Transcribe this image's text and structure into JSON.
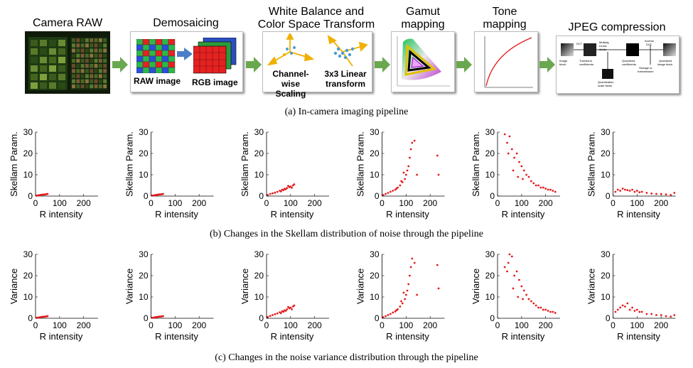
{
  "stages": [
    {
      "label": "Camera RAW"
    },
    {
      "label": "Demosaicing",
      "sub1": "RAW image",
      "sub2": "RGB image"
    },
    {
      "label": "White Balance and\nColor Space Transform",
      "sub1": "Channel-wise\nScaling",
      "sub2": "3x3 Linear\ntransform"
    },
    {
      "label": "Gamut\nmapping"
    },
    {
      "label": "Tone\nmapping"
    },
    {
      "label": "JPEG compression"
    }
  ],
  "captions": {
    "a": "(a)  In-camera imaging pipeline",
    "b": "(b)  Changes in the Skellam distribution of noise through the pipeline",
    "c": "(c)  Changes in the noise variance distribution through the pipeline"
  },
  "colors": {
    "points": "#e31a1c",
    "arrow": "#6aa84f"
  },
  "chart_data": [
    {
      "type": "scatter",
      "row": "b",
      "xlabel": "R intensity",
      "ylabel": "Skellam Param.",
      "xlim": [
        0,
        260
      ],
      "ylim": [
        0,
        30
      ],
      "xticks": [
        0,
        100,
        200
      ],
      "yticks": [
        0,
        10,
        20,
        30
      ],
      "points": [
        [
          5,
          0.2
        ],
        [
          10,
          0.3
        ],
        [
          15,
          0.4
        ],
        [
          20,
          0.5
        ],
        [
          25,
          0.6
        ],
        [
          30,
          0.7
        ],
        [
          35,
          0.7
        ],
        [
          40,
          0.8
        ],
        [
          45,
          0.9
        ],
        [
          50,
          1.0
        ]
      ]
    },
    {
      "type": "scatter",
      "row": "b",
      "xlabel": "R intensity",
      "ylabel": "Skellam Param.",
      "xlim": [
        0,
        260
      ],
      "ylim": [
        0,
        30
      ],
      "xticks": [
        0,
        100,
        200
      ],
      "yticks": [
        0,
        10,
        20,
        30
      ],
      "points": [
        [
          5,
          0.2
        ],
        [
          10,
          0.3
        ],
        [
          15,
          0.4
        ],
        [
          20,
          0.5
        ],
        [
          25,
          0.6
        ],
        [
          30,
          0.7
        ],
        [
          35,
          0.8
        ],
        [
          40,
          0.8
        ],
        [
          45,
          0.9
        ],
        [
          50,
          1.0
        ]
      ]
    },
    {
      "type": "scatter",
      "row": "b",
      "xlabel": "R intensity",
      "ylabel": "Skellam Param.",
      "xlim": [
        0,
        260
      ],
      "ylim": [
        0,
        30
      ],
      "xticks": [
        0,
        100,
        200
      ],
      "yticks": [
        0,
        10,
        20,
        30
      ],
      "points": [
        [
          5,
          0.5
        ],
        [
          15,
          1
        ],
        [
          25,
          1.3
        ],
        [
          35,
          1.6
        ],
        [
          45,
          2
        ],
        [
          55,
          2.5
        ],
        [
          65,
          3
        ],
        [
          75,
          3.4
        ],
        [
          85,
          3.8
        ],
        [
          95,
          4.2
        ],
        [
          100,
          4.5
        ],
        [
          110,
          5
        ],
        [
          115,
          5.5
        ],
        [
          60,
          2.2
        ],
        [
          80,
          3.2
        ],
        [
          90,
          4.8
        ],
        [
          105,
          3.9
        ],
        [
          70,
          2.8
        ]
      ]
    },
    {
      "type": "scatter",
      "row": "b",
      "xlabel": "R intensity",
      "ylabel": "Skellam Param.",
      "xlim": [
        0,
        260
      ],
      "ylim": [
        0,
        30
      ],
      "xticks": [
        0,
        100,
        200
      ],
      "yticks": [
        0,
        10,
        20,
        30
      ],
      "points": [
        [
          5,
          0.5
        ],
        [
          15,
          1
        ],
        [
          25,
          1.5
        ],
        [
          35,
          2
        ],
        [
          45,
          2.5
        ],
        [
          55,
          3
        ],
        [
          65,
          4
        ],
        [
          75,
          5
        ],
        [
          85,
          6.5
        ],
        [
          95,
          8
        ],
        [
          100,
          10
        ],
        [
          105,
          12
        ],
        [
          110,
          14
        ],
        [
          115,
          18
        ],
        [
          120,
          22
        ],
        [
          125,
          25
        ],
        [
          135,
          26
        ],
        [
          145,
          10
        ],
        [
          90,
          11
        ],
        [
          80,
          7
        ],
        [
          60,
          3.5
        ],
        [
          230,
          19
        ],
        [
          235,
          10
        ]
      ]
    },
    {
      "type": "scatter",
      "row": "b",
      "xlabel": "R intensity",
      "ylabel": "Skellam Param.",
      "xlim": [
        0,
        260
      ],
      "ylim": [
        0,
        30
      ],
      "xticks": [
        0,
        100,
        200
      ],
      "yticks": [
        0,
        10,
        20,
        30
      ],
      "points": [
        [
          30,
          29
        ],
        [
          40,
          25
        ],
        [
          50,
          28
        ],
        [
          60,
          22
        ],
        [
          70,
          18
        ],
        [
          80,
          20
        ],
        [
          90,
          16
        ],
        [
          100,
          14
        ],
        [
          110,
          12
        ],
        [
          120,
          10
        ],
        [
          130,
          9
        ],
        [
          140,
          7
        ],
        [
          150,
          6
        ],
        [
          160,
          5
        ],
        [
          170,
          5
        ],
        [
          180,
          4
        ],
        [
          190,
          4
        ],
        [
          200,
          3.5
        ],
        [
          210,
          3
        ],
        [
          220,
          3
        ],
        [
          230,
          2.5
        ],
        [
          240,
          2
        ],
        [
          45,
          20
        ],
        [
          65,
          12
        ],
        [
          85,
          9
        ],
        [
          105,
          8
        ]
      ]
    },
    {
      "type": "scatter",
      "row": "b",
      "xlabel": "R intensity",
      "ylabel": "Skellam Param.",
      "xlim": [
        0,
        260
      ],
      "ylim": [
        0,
        30
      ],
      "xticks": [
        0,
        100,
        200
      ],
      "yticks": [
        0,
        10,
        20,
        30
      ],
      "points": [
        [
          10,
          2
        ],
        [
          20,
          3
        ],
        [
          30,
          2.5
        ],
        [
          40,
          3.5
        ],
        [
          50,
          3
        ],
        [
          60,
          2.8
        ],
        [
          70,
          2.5
        ],
        [
          80,
          3
        ],
        [
          90,
          2
        ],
        [
          100,
          2.5
        ],
        [
          110,
          1.8
        ],
        [
          120,
          2
        ],
        [
          140,
          1.5
        ],
        [
          160,
          1.2
        ],
        [
          180,
          1
        ],
        [
          200,
          1
        ],
        [
          220,
          0.8
        ],
        [
          240,
          0.5
        ],
        [
          255,
          1.5
        ]
      ]
    },
    {
      "type": "scatter",
      "row": "c",
      "xlabel": "R intensity",
      "ylabel": "Variance",
      "xlim": [
        0,
        260
      ],
      "ylim": [
        0,
        30
      ],
      "xticks": [
        0,
        100,
        200
      ],
      "yticks": [
        0,
        10,
        20,
        30
      ],
      "points": [
        [
          5,
          0.2
        ],
        [
          10,
          0.3
        ],
        [
          15,
          0.4
        ],
        [
          20,
          0.5
        ],
        [
          25,
          0.6
        ],
        [
          30,
          0.7
        ],
        [
          35,
          0.7
        ],
        [
          40,
          0.8
        ],
        [
          45,
          0.9
        ],
        [
          50,
          1.0
        ]
      ]
    },
    {
      "type": "scatter",
      "row": "c",
      "xlabel": "R intensity",
      "ylabel": "Variance",
      "xlim": [
        0,
        260
      ],
      "ylim": [
        0,
        30
      ],
      "xticks": [
        0,
        100,
        200
      ],
      "yticks": [
        0,
        10,
        20,
        30
      ],
      "points": [
        [
          5,
          0.2
        ],
        [
          10,
          0.3
        ],
        [
          15,
          0.4
        ],
        [
          20,
          0.5
        ],
        [
          25,
          0.6
        ],
        [
          30,
          0.7
        ],
        [
          35,
          0.8
        ],
        [
          40,
          0.8
        ],
        [
          45,
          0.9
        ],
        [
          50,
          1.0
        ]
      ]
    },
    {
      "type": "scatter",
      "row": "c",
      "xlabel": "R intensity",
      "ylabel": "Variance",
      "xlim": [
        0,
        260
      ],
      "ylim": [
        0,
        30
      ],
      "xticks": [
        0,
        100,
        200
      ],
      "yticks": [
        0,
        10,
        20,
        30
      ],
      "points": [
        [
          5,
          0.6
        ],
        [
          15,
          1.1
        ],
        [
          25,
          1.5
        ],
        [
          35,
          1.9
        ],
        [
          45,
          2.3
        ],
        [
          55,
          2.8
        ],
        [
          65,
          3.3
        ],
        [
          75,
          3.7
        ],
        [
          85,
          4.2
        ],
        [
          95,
          4.7
        ],
        [
          100,
          5
        ],
        [
          110,
          5.5
        ],
        [
          115,
          6
        ],
        [
          60,
          2.4
        ],
        [
          80,
          3.5
        ],
        [
          90,
          5.3
        ],
        [
          105,
          4.2
        ],
        [
          70,
          3.1
        ]
      ]
    },
    {
      "type": "scatter",
      "row": "c",
      "xlabel": "R intensity",
      "ylabel": "Variance",
      "xlim": [
        0,
        260
      ],
      "ylim": [
        0,
        30
      ],
      "xticks": [
        0,
        100,
        200
      ],
      "yticks": [
        0,
        10,
        20,
        30
      ],
      "points": [
        [
          5,
          0.5
        ],
        [
          15,
          1
        ],
        [
          25,
          1.5
        ],
        [
          35,
          2
        ],
        [
          45,
          2.7
        ],
        [
          55,
          3.2
        ],
        [
          65,
          4.2
        ],
        [
          75,
          5.5
        ],
        [
          85,
          7
        ],
        [
          95,
          9
        ],
        [
          100,
          11
        ],
        [
          105,
          13
        ],
        [
          110,
          16
        ],
        [
          115,
          20
        ],
        [
          120,
          24
        ],
        [
          125,
          28
        ],
        [
          135,
          26
        ],
        [
          145,
          11
        ],
        [
          90,
          12
        ],
        [
          80,
          8
        ],
        [
          60,
          3.8
        ],
        [
          230,
          25
        ],
        [
          235,
          14
        ]
      ]
    },
    {
      "type": "scatter",
      "row": "c",
      "xlabel": "R intensity",
      "ylabel": "Variance",
      "xlim": [
        0,
        260
      ],
      "ylim": [
        0,
        30
      ],
      "xticks": [
        0,
        100,
        200
      ],
      "yticks": [
        0,
        10,
        20,
        30
      ],
      "points": [
        [
          30,
          24
        ],
        [
          40,
          22
        ],
        [
          50,
          30
        ],
        [
          60,
          29
        ],
        [
          70,
          20
        ],
        [
          80,
          22
        ],
        [
          90,
          18
        ],
        [
          100,
          15
        ],
        [
          110,
          13
        ],
        [
          120,
          11
        ],
        [
          130,
          9
        ],
        [
          140,
          8
        ],
        [
          150,
          7
        ],
        [
          160,
          6
        ],
        [
          170,
          5
        ],
        [
          180,
          5
        ],
        [
          190,
          4
        ],
        [
          200,
          4
        ],
        [
          210,
          3.5
        ],
        [
          220,
          3
        ],
        [
          230,
          3
        ],
        [
          240,
          2.5
        ],
        [
          45,
          26
        ],
        [
          65,
          14
        ],
        [
          85,
          10
        ],
        [
          105,
          9
        ]
      ]
    },
    {
      "type": "scatter",
      "row": "c",
      "xlabel": "R intensity",
      "ylabel": "Variance",
      "xlim": [
        0,
        260
      ],
      "ylim": [
        0,
        30
      ],
      "xticks": [
        0,
        100,
        200
      ],
      "yticks": [
        0,
        10,
        20,
        30
      ],
      "points": [
        [
          10,
          3
        ],
        [
          20,
          4
        ],
        [
          30,
          5
        ],
        [
          40,
          6
        ],
        [
          50,
          5.5
        ],
        [
          60,
          7
        ],
        [
          70,
          4
        ],
        [
          80,
          5
        ],
        [
          90,
          3.5
        ],
        [
          100,
          4
        ],
        [
          110,
          3
        ],
        [
          120,
          3
        ],
        [
          140,
          2
        ],
        [
          160,
          2
        ],
        [
          180,
          1.5
        ],
        [
          200,
          1.5
        ],
        [
          220,
          1
        ],
        [
          240,
          0.8
        ],
        [
          255,
          1.5
        ]
      ]
    }
  ]
}
